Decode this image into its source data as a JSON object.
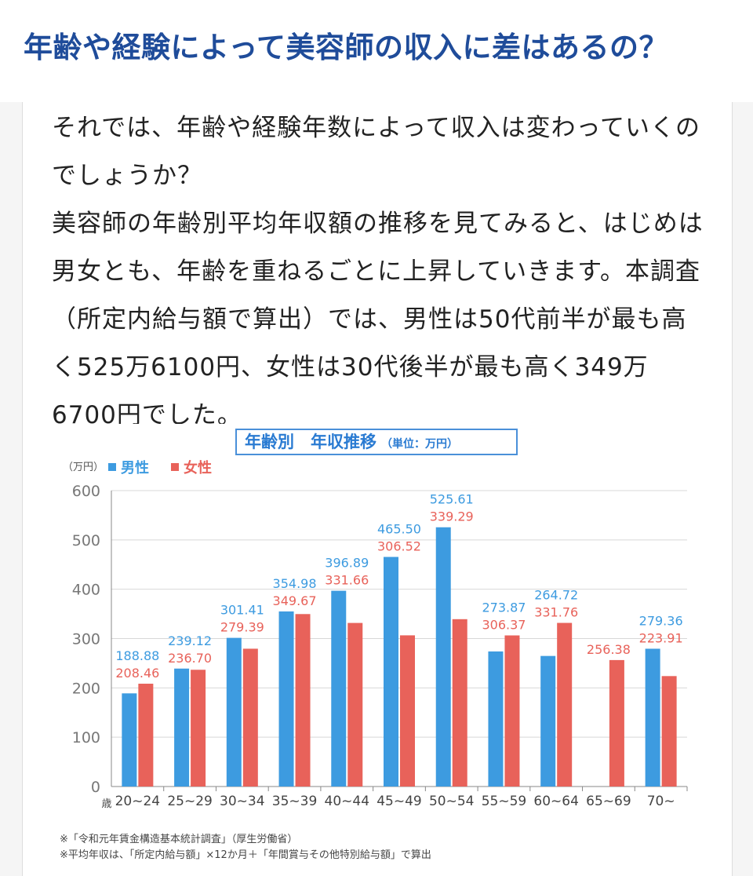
{
  "heading": "年齢や経験によって美容師の収入に差はあるの？",
  "paragraphs": [
    "それでは、年齢や経験年数によって収入は変わっていくのでしょうか？",
    "美容師の年齢別平均年収額の推移を見てみると、はじめは男女とも、年齢を重ねるごとに上昇していきます。本調査（所定内給与額で算出）では、男性は50代前半が最も高く525万6100円、女性は30代後半が最も高く349万6700円でした。"
  ],
  "chart_data": {
    "type": "bar",
    "title": "年齢別　年収推移",
    "title_unit": "（単位：万円）",
    "y_unit": "（万円）",
    "x_unit": "歳",
    "ylim": [
      0,
      600
    ],
    "yticks": [
      0,
      100,
      200,
      300,
      400,
      500,
      600
    ],
    "categories": [
      "20~24",
      "25~29",
      "30~34",
      "35~39",
      "40~44",
      "45~49",
      "50~54",
      "55~59",
      "60~64",
      "65~69",
      "70~"
    ],
    "series": [
      {
        "name": "男性",
        "color": "#3d9be0",
        "values": [
          188.88,
          239.12,
          301.41,
          354.98,
          396.89,
          465.5,
          525.61,
          273.87,
          264.72,
          null,
          279.36
        ],
        "labels": [
          "188.88",
          "239.12",
          "301.41",
          "354.98",
          "396.89",
          "465.50",
          "525.61",
          "273.87",
          "264.72",
          "",
          "279.36"
        ]
      },
      {
        "name": "女性",
        "color": "#e8625a",
        "values": [
          208.46,
          236.7,
          279.39,
          349.67,
          331.66,
          306.52,
          339.29,
          306.37,
          331.76,
          256.38,
          223.91
        ],
        "labels": [
          "208.46",
          "236.70",
          "279.39",
          "349.67",
          "331.66",
          "306.52",
          "339.29",
          "306.37",
          "331.76",
          "256.38",
          "223.91"
        ]
      }
    ],
    "legend_placement": "top-left",
    "grid": true
  },
  "notes": [
    "※「令和元年賃金構造基本統計調査」（厚生労働省）",
    "※平均年収は、「所定内給与額」×12か月＋「年間賞与その他特別給与額」で算出"
  ]
}
